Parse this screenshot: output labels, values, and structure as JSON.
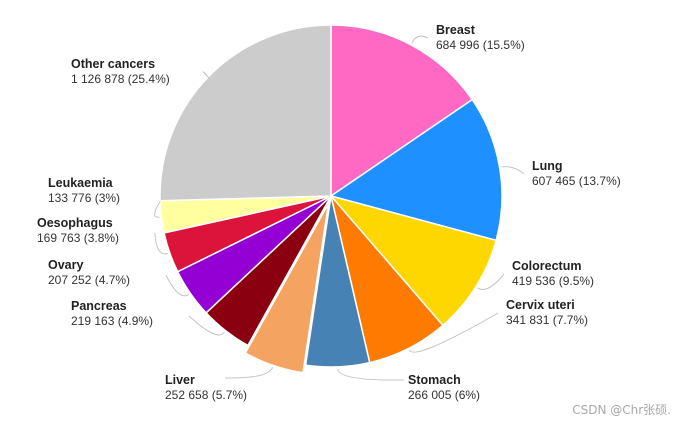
{
  "chart_data": {
    "type": "pie",
    "slices": [
      {
        "name": "Breast",
        "value_text": "684 996 (15.5%)",
        "value": 684996,
        "percent": 15.5,
        "color": "#ff69c4"
      },
      {
        "name": "Lung",
        "value_text": "607 465 (13.7%)",
        "value": 607465,
        "percent": 13.7,
        "color": "#1e90ff"
      },
      {
        "name": "Colorectum",
        "value_text": "419 536 (9.5%)",
        "value": 419536,
        "percent": 9.5,
        "color": "#ffd700"
      },
      {
        "name": "Cervix uteri",
        "value_text": "341 831 (7.7%)",
        "value": 341831,
        "percent": 7.7,
        "color": "#ff7a00"
      },
      {
        "name": "Stomach",
        "value_text": "266 005 (6%)",
        "value": 266005,
        "percent": 6.0,
        "color": "#4682b4"
      },
      {
        "name": "Liver",
        "value_text": "252 658 (5.7%)",
        "value": 252658,
        "percent": 5.7,
        "color": "#f4a460",
        "exploded": true
      },
      {
        "name": "Pancreas",
        "value_text": "219 163 (4.9%)",
        "value": 219163,
        "percent": 4.9,
        "color": "#8b0010"
      },
      {
        "name": "Ovary",
        "value_text": "207 252 (4.7%)",
        "value": 207252,
        "percent": 4.7,
        "color": "#9400d3"
      },
      {
        "name": "Oesophagus",
        "value_text": "169 763 (3.8%)",
        "value": 169763,
        "percent": 3.8,
        "color": "#dc143c"
      },
      {
        "name": "Leukaemia",
        "value_text": "133 776 (3%)",
        "value": 133776,
        "percent": 3.0,
        "color": "#ffffa0"
      },
      {
        "name": "Other cancers",
        "value_text": "1 126 878 (25.4%)",
        "value": 1126878,
        "percent": 25.4,
        "color": "#cccccc"
      }
    ]
  },
  "watermark": "CSDN @Chr张硕."
}
